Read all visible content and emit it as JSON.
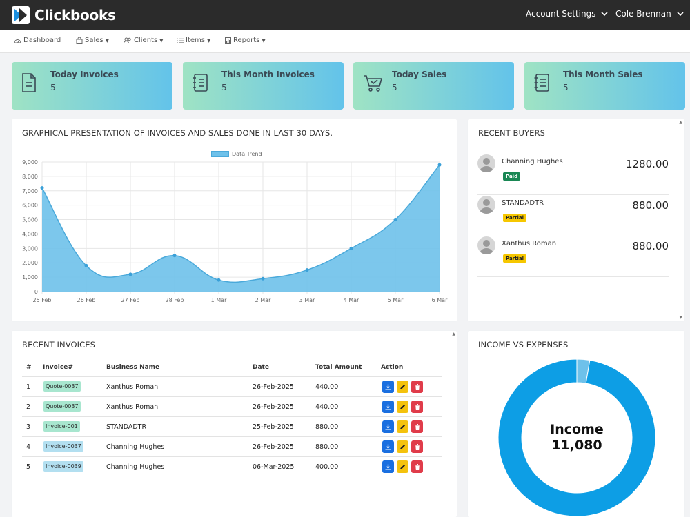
{
  "app": {
    "name": "Clickbooks"
  },
  "topbar": {
    "account_settings": "Account Settings",
    "user_name": "Cole Brennan"
  },
  "nav": [
    {
      "label": "Dashboard"
    },
    {
      "label": "Sales"
    },
    {
      "label": "Clients"
    },
    {
      "label": "Items"
    },
    {
      "label": "Reports"
    }
  ],
  "stats": [
    {
      "title": "Today Invoices",
      "value": "5",
      "icon": "document-icon"
    },
    {
      "title": "This Month Invoices",
      "value": "5",
      "icon": "list-document-icon"
    },
    {
      "title": "Today Sales",
      "value": "5",
      "icon": "cart-icon"
    },
    {
      "title": "This Month Sales",
      "value": "5",
      "icon": "list-document-icon"
    }
  ],
  "chart_panel": {
    "title": "GRAPHICAL PRESENTATION OF INVOICES AND SALES DONE IN LAST 30 DAYS."
  },
  "chart_data": {
    "type": "area",
    "legend": "Data Trend",
    "x": [
      "25 Feb",
      "26 Feb",
      "27 Feb",
      "28 Feb",
      "1 Mar",
      "2 Mar",
      "3 Mar",
      "4 Mar",
      "5 Mar",
      "6 Mar"
    ],
    "series": [
      {
        "name": "Data Trend",
        "values": [
          7200,
          1800,
          1200,
          2500,
          800,
          900,
          1500,
          3000,
          5000,
          8800
        ]
      }
    ],
    "yticks": [
      "0",
      "1,000",
      "2,000",
      "3,000",
      "4,000",
      "5,000",
      "6,000",
      "7,000",
      "8,000",
      "9,000"
    ],
    "ylim": [
      0,
      9000
    ],
    "grid": true,
    "color": "#6ec1ea"
  },
  "buyers_panel": {
    "title": "RECENT BUYERS"
  },
  "buyers": [
    {
      "name": "Channing Hughes",
      "status": "Paid",
      "amount": "1280.00"
    },
    {
      "name": "STANDADTR",
      "status": "Partial",
      "amount": "880.00"
    },
    {
      "name": "Xanthus Roman",
      "status": "Partial",
      "amount": "880.00"
    }
  ],
  "invoices_panel": {
    "title": "RECENT INVOICES",
    "headers": {
      "num": "#",
      "invoice": "Invoice#",
      "business": "Business Name",
      "date": "Date",
      "total": "Total Amount",
      "action": "Action"
    },
    "rows": [
      {
        "num": "1",
        "invoice": "Quote-0037",
        "business": "Xanthus Roman",
        "date": "26-Feb-2025",
        "total": "440.00"
      },
      {
        "num": "2",
        "invoice": "Quote-0037",
        "business": "Xanthus Roman",
        "date": "26-Feb-2025",
        "total": "440.00"
      },
      {
        "num": "3",
        "invoice": "Invoice-001",
        "business": "STANDADTR",
        "date": "25-Feb-2025",
        "total": "880.00"
      },
      {
        "num": "4",
        "invoice": "Invoice-0037",
        "business": "Channing Hughes",
        "date": "26-Feb-2025",
        "total": "880.00"
      },
      {
        "num": "5",
        "invoice": "Invoice-0039",
        "business": "Channing Hughes",
        "date": "06-Mar-2025",
        "total": "400.00"
      }
    ]
  },
  "income_panel": {
    "title": "INCOME VS EXPENSES",
    "center_label": "Income",
    "center_value": "11,080"
  },
  "donut_data": {
    "income": 11080,
    "expenses": 300,
    "income_color": "#0d9ee5",
    "expenses_color": "#6ec1ea"
  }
}
